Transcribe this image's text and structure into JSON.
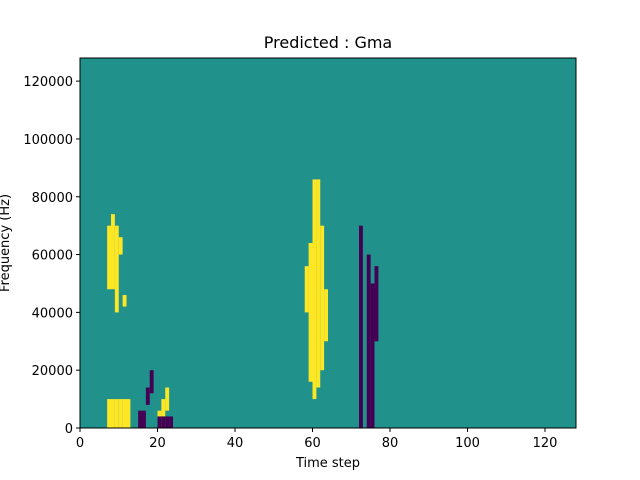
{
  "chart_data": {
    "type": "heatmap",
    "title": "Predicted : Gma",
    "xlabel": "Time step",
    "ylabel": "Frequency (Hz)",
    "xlim": [
      0,
      128
    ],
    "ylim": [
      0,
      128000
    ],
    "x_ticks": [
      0,
      20,
      40,
      60,
      80,
      100,
      120
    ],
    "y_ticks": [
      0,
      20000,
      40000,
      60000,
      80000,
      100000,
      120000
    ],
    "y_tick_labels": [
      "0",
      "20000",
      "40000",
      "60000",
      "80000",
      "100000",
      "120000"
    ],
    "grid": false,
    "legend": "none",
    "colormap": {
      "-1": "#440154",
      "0": "#21918c",
      "1": "#fde725"
    },
    "background_value": 0,
    "cell_size": {
      "time_steps": 1,
      "hz": 2000
    },
    "cells": [
      [
        7,
        0,
        10,
        1
      ],
      [
        8,
        0,
        10,
        1
      ],
      [
        9,
        0,
        10,
        1
      ],
      [
        10,
        0,
        10,
        1
      ],
      [
        11,
        0,
        10,
        1
      ],
      [
        12,
        0,
        10,
        1
      ],
      [
        7,
        48,
        70,
        1
      ],
      [
        8,
        48,
        74,
        1
      ],
      [
        9,
        40,
        70,
        1
      ],
      [
        10,
        60,
        66,
        1
      ],
      [
        11,
        42,
        46,
        1
      ],
      [
        15,
        0,
        6,
        -1
      ],
      [
        16,
        0,
        6,
        -1
      ],
      [
        17,
        8,
        14,
        -1
      ],
      [
        18,
        12,
        20,
        -1
      ],
      [
        20,
        0,
        6,
        1
      ],
      [
        21,
        4,
        10,
        1
      ],
      [
        22,
        6,
        14,
        1
      ],
      [
        20,
        0,
        4,
        -1
      ],
      [
        21,
        0,
        4,
        -1
      ],
      [
        22,
        0,
        4,
        -1
      ],
      [
        23,
        0,
        4,
        -1
      ],
      [
        58,
        40,
        56,
        1
      ],
      [
        59,
        16,
        64,
        1
      ],
      [
        60,
        10,
        86,
        1
      ],
      [
        61,
        14,
        86,
        1
      ],
      [
        62,
        20,
        70,
        1
      ],
      [
        63,
        30,
        48,
        1
      ],
      [
        72,
        0,
        70,
        -1
      ],
      [
        74,
        0,
        60,
        -1
      ],
      [
        75,
        0,
        50,
        -1
      ],
      [
        76,
        30,
        56,
        -1
      ]
    ],
    "values_note": ""
  }
}
